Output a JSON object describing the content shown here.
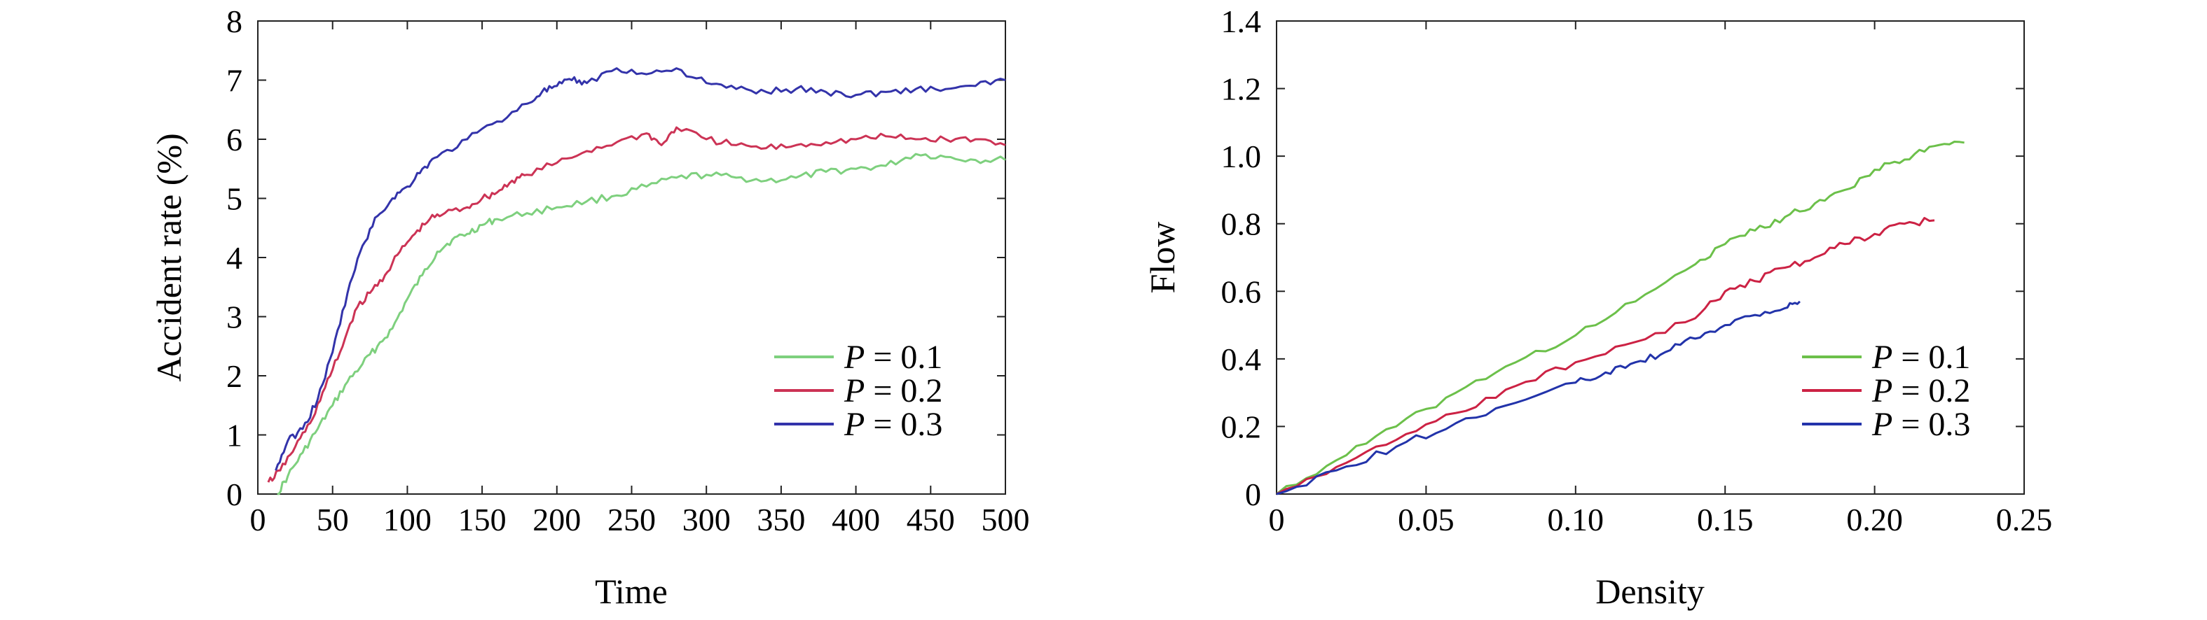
{
  "chart_data": [
    {
      "type": "line",
      "title": "",
      "xlabel": "Time",
      "ylabel": "Accident rate (%)",
      "xlim": [
        0,
        500
      ],
      "ylim": [
        0,
        8
      ],
      "xticks": [
        "0",
        "50",
        "100",
        "150",
        "200",
        "250",
        "300",
        "350",
        "400",
        "450",
        "500"
      ],
      "yticks": [
        "0",
        "1",
        "2",
        "3",
        "4",
        "5",
        "6",
        "7",
        "8"
      ],
      "grid": false,
      "legend_position": "bottom-right",
      "series": [
        {
          "name_prefix": "P",
          "name_value": " = 0.1",
          "color": "#7ed07e",
          "x": [
            13,
            20,
            30,
            40,
            50,
            60,
            70,
            80,
            90,
            100,
            110,
            120,
            130,
            140,
            150,
            160,
            180,
            200,
            220,
            240,
            260,
            280,
            300,
            320,
            340,
            360,
            380,
            400,
            420,
            440,
            460,
            480,
            500
          ],
          "y": [
            0.0,
            0.3,
            0.7,
            1.1,
            1.5,
            1.9,
            2.2,
            2.5,
            2.8,
            3.3,
            3.7,
            4.1,
            4.3,
            4.4,
            4.55,
            4.65,
            4.75,
            4.85,
            4.95,
            5.05,
            5.2,
            5.35,
            5.4,
            5.35,
            5.3,
            5.35,
            5.45,
            5.5,
            5.55,
            5.75,
            5.7,
            5.65,
            5.65
          ]
        },
        {
          "name_prefix": "P",
          "name_value": " = 0.2",
          "color": "#cc3355",
          "x": [
            7,
            15,
            25,
            35,
            45,
            55,
            65,
            75,
            85,
            95,
            105,
            115,
            125,
            140,
            150,
            160,
            170,
            180,
            200,
            220,
            240,
            260,
            270,
            280,
            300,
            320,
            340,
            360,
            380,
            400,
            420,
            440,
            460,
            480,
            500
          ],
          "y": [
            0.2,
            0.4,
            0.8,
            1.2,
            1.8,
            2.4,
            3.1,
            3.4,
            3.7,
            4.1,
            4.4,
            4.65,
            4.75,
            4.85,
            5.0,
            5.1,
            5.3,
            5.4,
            5.6,
            5.8,
            5.95,
            6.1,
            5.9,
            6.2,
            6.0,
            5.9,
            5.85,
            5.9,
            5.95,
            6.0,
            6.05,
            6.0,
            6.0,
            6.0,
            5.9
          ]
        },
        {
          "name_prefix": "P",
          "name_value": " = 0.3",
          "color": "#3333aa",
          "x": [
            12,
            20,
            30,
            40,
            50,
            60,
            70,
            80,
            90,
            100,
            110,
            120,
            140,
            160,
            180,
            190,
            200,
            210,
            220,
            240,
            260,
            280,
            300,
            320,
            340,
            360,
            380,
            400,
            420,
            440,
            460,
            480,
            500
          ],
          "y": [
            0.4,
            0.9,
            1.1,
            1.6,
            2.4,
            3.4,
            4.2,
            4.7,
            5.0,
            5.2,
            5.5,
            5.7,
            6.0,
            6.3,
            6.6,
            6.8,
            6.9,
            7.0,
            6.95,
            7.2,
            7.1,
            7.2,
            6.95,
            6.85,
            6.8,
            6.85,
            6.8,
            6.75,
            6.8,
            6.85,
            6.85,
            6.9,
            7.0
          ]
        }
      ]
    },
    {
      "type": "line",
      "title": "",
      "xlabel": "Density",
      "ylabel": "Flow",
      "xlim": [
        0,
        0.25
      ],
      "ylim": [
        0,
        1.4
      ],
      "xticks": [
        "0",
        "0.05",
        "0.10",
        "0.15",
        "0.20",
        "0.25"
      ],
      "yticks": [
        "0",
        "0.2",
        "0.4",
        "0.6",
        "0.8",
        "1.0",
        "1.2",
        "1.4"
      ],
      "grid": false,
      "legend_position": "bottom-right",
      "series": [
        {
          "name_prefix": "P",
          "name_value": " = 0.1",
          "color": "#6cc04a",
          "x": [
            0.0,
            0.02,
            0.04,
            0.06,
            0.08,
            0.1,
            0.12,
            0.14,
            0.15,
            0.16,
            0.17,
            0.18,
            0.19,
            0.2,
            0.21,
            0.22,
            0.23
          ],
          "y": [
            0.0,
            0.1,
            0.2,
            0.3,
            0.39,
            0.47,
            0.57,
            0.68,
            0.74,
            0.78,
            0.82,
            0.86,
            0.9,
            0.96,
            0.99,
            1.03,
            1.04
          ]
        },
        {
          "name_prefix": "P",
          "name_value": " = 0.2",
          "color": "#cc2244",
          "x": [
            0.0,
            0.02,
            0.04,
            0.06,
            0.08,
            0.1,
            0.12,
            0.14,
            0.15,
            0.16,
            0.17,
            0.18,
            0.19,
            0.2,
            0.21,
            0.22
          ],
          "y": [
            0.0,
            0.08,
            0.16,
            0.24,
            0.32,
            0.39,
            0.45,
            0.52,
            0.6,
            0.63,
            0.67,
            0.7,
            0.74,
            0.77,
            0.8,
            0.81
          ]
        },
        {
          "name_prefix": "P",
          "name_value": " = 0.3",
          "color": "#2233aa",
          "x": [
            0.0,
            0.02,
            0.04,
            0.06,
            0.08,
            0.1,
            0.11,
            0.12,
            0.13,
            0.14,
            0.15,
            0.16,
            0.17,
            0.175
          ],
          "y": [
            0.0,
            0.07,
            0.14,
            0.21,
            0.27,
            0.33,
            0.36,
            0.39,
            0.42,
            0.46,
            0.5,
            0.53,
            0.55,
            0.57
          ]
        }
      ]
    }
  ]
}
